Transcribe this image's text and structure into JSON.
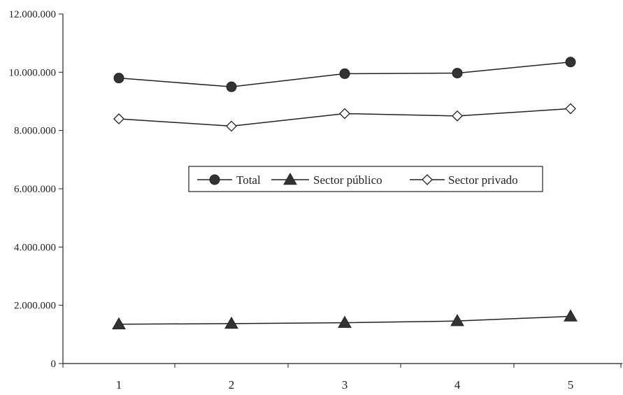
{
  "chart_data": {
    "type": "line",
    "title": "",
    "xlabel": "",
    "ylabel": "",
    "x": [
      1,
      2,
      3,
      4,
      5
    ],
    "x_tick_labels": [
      "1",
      "2",
      "3",
      "4",
      "5"
    ],
    "ylim": [
      0,
      12000000
    ],
    "y_tick_values": [
      0,
      2000000,
      4000000,
      6000000,
      8000000,
      10000000,
      12000000
    ],
    "y_tick_labels": [
      "0",
      "2.000.000",
      "4.000.000",
      "6.000.000",
      "8.000.000",
      "10.000.000",
      "12.000.000"
    ],
    "grid": false,
    "legend_position": "center",
    "series": [
      {
        "name": "Total",
        "marker": "circle",
        "values": [
          9800000,
          9500000,
          9950000,
          9970000,
          10350000
        ]
      },
      {
        "name": "Sector público",
        "marker": "triangle",
        "values": [
          1350000,
          1370000,
          1400000,
          1460000,
          1620000
        ]
      },
      {
        "name": "Sector privado",
        "marker": "diamond",
        "values": [
          8400000,
          8150000,
          8580000,
          8500000,
          8750000
        ]
      }
    ],
    "colors": {
      "line": "#222222",
      "marker_fill": "#333333",
      "marker_hollow": "#ffffff"
    }
  }
}
